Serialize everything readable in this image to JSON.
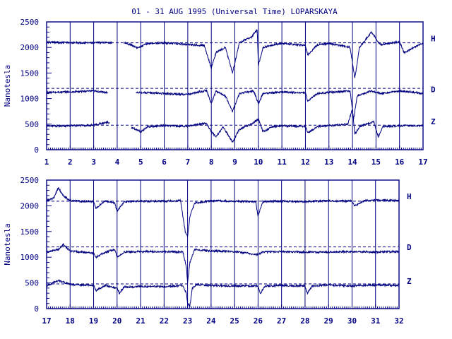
{
  "title": "01 - 31 AUG 1995 (Universal Time) LOPARSKAYA",
  "colors": {
    "ink": "#000080",
    "background": "#ffffff"
  },
  "chart_data": [
    {
      "type": "line",
      "ylabel": "Nanotesla",
      "ylim": [
        0,
        2500
      ],
      "yticks": [
        0,
        500,
        1000,
        1500,
        2000,
        2500
      ],
      "xlim": [
        1,
        17
      ],
      "xticks": [
        1,
        2,
        3,
        4,
        5,
        6,
        7,
        8,
        9,
        10,
        11,
        12,
        13,
        14,
        15,
        16,
        17
      ],
      "grid": "vertical at each day",
      "reference_lines": [
        {
          "series": "H",
          "value": 2090
        },
        {
          "series": "D",
          "value": 1200
        },
        {
          "series": "Z",
          "value": 480
        }
      ],
      "series": [
        {
          "name": "H",
          "gaps": [
            [
              3.8,
              4.3
            ]
          ],
          "points": [
            [
              1,
              2100
            ],
            [
              2,
              2095
            ],
            [
              3,
              2090
            ],
            [
              3.6,
              2100
            ],
            [
              4.4,
              2085
            ],
            [
              4.9,
              1990
            ],
            [
              5.3,
              2080
            ],
            [
              6,
              2090
            ],
            [
              7,
              2060
            ],
            [
              7.7,
              2040
            ],
            [
              8.0,
              1600
            ],
            [
              8.2,
              1900
            ],
            [
              8.6,
              2000
            ],
            [
              8.9,
              1500
            ],
            [
              9.2,
              2100
            ],
            [
              9.7,
              2200
            ],
            [
              9.95,
              2350
            ],
            [
              10.0,
              1650
            ],
            [
              10.2,
              2000
            ],
            [
              10.6,
              2050
            ],
            [
              11,
              2080
            ],
            [
              12,
              2040
            ],
            [
              12.1,
              1850
            ],
            [
              12.5,
              2050
            ],
            [
              13,
              2080
            ],
            [
              13.9,
              2000
            ],
            [
              14.1,
              1400
            ],
            [
              14.3,
              2000
            ],
            [
              14.8,
              2300
            ],
            [
              15.2,
              2050
            ],
            [
              15.5,
              2080
            ],
            [
              16,
              2110
            ],
            [
              16.2,
              1900
            ],
            [
              17,
              2090
            ]
          ]
        },
        {
          "name": "D",
          "gaps": [
            [
              3.6,
              4.8
            ]
          ],
          "points": [
            [
              1,
              1120
            ],
            [
              2,
              1130
            ],
            [
              3,
              1150
            ],
            [
              3.5,
              1120
            ],
            [
              4.9,
              1120
            ],
            [
              5.5,
              1110
            ],
            [
              6,
              1100
            ],
            [
              7,
              1080
            ],
            [
              7.8,
              1160
            ],
            [
              8.0,
              900
            ],
            [
              8.2,
              1150
            ],
            [
              8.6,
              1050
            ],
            [
              8.9,
              750
            ],
            [
              9.2,
              1100
            ],
            [
              9.8,
              1150
            ],
            [
              10.0,
              900
            ],
            [
              10.2,
              1100
            ],
            [
              11,
              1130
            ],
            [
              12,
              1110
            ],
            [
              12.1,
              950
            ],
            [
              12.5,
              1100
            ],
            [
              13,
              1120
            ],
            [
              13.9,
              1150
            ],
            [
              14.05,
              600
            ],
            [
              14.2,
              1050
            ],
            [
              14.8,
              1150
            ],
            [
              15.2,
              1100
            ],
            [
              16,
              1150
            ],
            [
              17,
              1100
            ]
          ]
        },
        {
          "name": "Z",
          "gaps": [
            [
              3.7,
              4.6
            ]
          ],
          "points": [
            [
              1,
              460
            ],
            [
              2,
              470
            ],
            [
              3,
              480
            ],
            [
              3.6,
              540
            ],
            [
              4.7,
              420
            ],
            [
              5,
              350
            ],
            [
              5.3,
              450
            ],
            [
              6,
              470
            ],
            [
              7,
              460
            ],
            [
              7.8,
              520
            ],
            [
              8.0,
              350
            ],
            [
              8.2,
              250
            ],
            [
              8.5,
              450
            ],
            [
              8.9,
              150
            ],
            [
              9.2,
              400
            ],
            [
              9.7,
              500
            ],
            [
              10.0,
              600
            ],
            [
              10.2,
              350
            ],
            [
              10.6,
              450
            ],
            [
              11,
              470
            ],
            [
              12,
              450
            ],
            [
              12.1,
              330
            ],
            [
              12.5,
              450
            ],
            [
              13,
              470
            ],
            [
              13.8,
              500
            ],
            [
              14.0,
              800
            ],
            [
              14.1,
              300
            ],
            [
              14.3,
              450
            ],
            [
              14.9,
              550
            ],
            [
              15.1,
              250
            ],
            [
              15.3,
              450
            ],
            [
              16,
              470
            ],
            [
              17,
              470
            ]
          ]
        }
      ]
    },
    {
      "type": "line",
      "ylabel": "Nanotesla",
      "ylim": [
        0,
        2500
      ],
      "yticks": [
        0,
        500,
        1000,
        1500,
        2000,
        2500
      ],
      "xlim": [
        17,
        32
      ],
      "xticks": [
        17,
        18,
        19,
        20,
        21,
        22,
        23,
        24,
        25,
        26,
        27,
        28,
        29,
        30,
        31,
        32
      ],
      "grid": "vertical at each day",
      "reference_lines": [
        {
          "series": "H",
          "value": 2090
        },
        {
          "series": "D",
          "value": 1200
        },
        {
          "series": "Z",
          "value": 480
        }
      ],
      "series": [
        {
          "name": "H",
          "gaps": [],
          "points": [
            [
              17,
              2100
            ],
            [
              17.3,
              2150
            ],
            [
              17.5,
              2350
            ],
            [
              17.7,
              2200
            ],
            [
              18,
              2100
            ],
            [
              19,
              2080
            ],
            [
              19.1,
              1950
            ],
            [
              19.5,
              2100
            ],
            [
              19.9,
              2050
            ],
            [
              20.0,
              1900
            ],
            [
              20.3,
              2080
            ],
            [
              21,
              2090
            ],
            [
              22,
              2090
            ],
            [
              22.7,
              2100
            ],
            [
              22.9,
              1500
            ],
            [
              23.0,
              1400
            ],
            [
              23.1,
              1800
            ],
            [
              23.3,
              2050
            ],
            [
              24,
              2100
            ],
            [
              25,
              2090
            ],
            [
              25.9,
              2080
            ],
            [
              26.0,
              1800
            ],
            [
              26.2,
              2080
            ],
            [
              27,
              2090
            ],
            [
              28,
              2080
            ],
            [
              29,
              2100
            ],
            [
              30,
              2090
            ],
            [
              30.1,
              2000
            ],
            [
              30.5,
              2100
            ],
            [
              31,
              2110
            ],
            [
              32,
              2100
            ]
          ]
        },
        {
          "name": "D",
          "gaps": [],
          "points": [
            [
              17,
              1100
            ],
            [
              17.5,
              1150
            ],
            [
              17.7,
              1250
            ],
            [
              18,
              1120
            ],
            [
              19,
              1080
            ],
            [
              19.1,
              1000
            ],
            [
              19.5,
              1100
            ],
            [
              19.9,
              1150
            ],
            [
              20.0,
              1000
            ],
            [
              20.3,
              1100
            ],
            [
              21,
              1110
            ],
            [
              22,
              1110
            ],
            [
              22.8,
              1100
            ],
            [
              22.95,
              800
            ],
            [
              23.0,
              500
            ],
            [
              23.1,
              900
            ],
            [
              23.3,
              1150
            ],
            [
              24,
              1120
            ],
            [
              25,
              1110
            ],
            [
              26,
              1050
            ],
            [
              26.2,
              1100
            ],
            [
              27,
              1110
            ],
            [
              28,
              1100
            ],
            [
              29,
              1100
            ],
            [
              30,
              1110
            ],
            [
              31,
              1100
            ],
            [
              32,
              1110
            ]
          ]
        },
        {
          "name": "Z",
          "gaps": [],
          "points": [
            [
              17,
              440
            ],
            [
              17.5,
              550
            ],
            [
              18,
              470
            ],
            [
              19,
              450
            ],
            [
              19.1,
              350
            ],
            [
              19.5,
              450
            ],
            [
              20,
              400
            ],
            [
              20.1,
              300
            ],
            [
              20.3,
              420
            ],
            [
              21,
              430
            ],
            [
              22,
              430
            ],
            [
              22.8,
              450
            ],
            [
              22.95,
              300
            ],
            [
              23.0,
              100
            ],
            [
              23.1,
              50
            ],
            [
              23.2,
              400
            ],
            [
              23.4,
              470
            ],
            [
              24,
              450
            ],
            [
              25,
              440
            ],
            [
              26,
              440
            ],
            [
              26.1,
              300
            ],
            [
              26.3,
              440
            ],
            [
              27,
              450
            ],
            [
              28,
              440
            ],
            [
              28.1,
              300
            ],
            [
              28.3,
              440
            ],
            [
              29,
              460
            ],
            [
              30,
              440
            ],
            [
              31,
              460
            ],
            [
              32,
              450
            ]
          ]
        }
      ]
    }
  ]
}
